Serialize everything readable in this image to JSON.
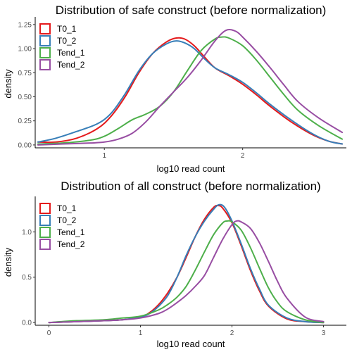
{
  "chart_data": [
    {
      "type": "line",
      "title": "Distribution of safe construct (before normalization)",
      "xlabel": "log10 read count",
      "ylabel": "density",
      "xlim": [
        0.5,
        2.75
      ],
      "ylim": [
        -0.03,
        1.3
      ],
      "xticks": [
        1,
        2
      ],
      "xtick_labels": [
        "1",
        "2"
      ],
      "yticks": [
        0,
        0.25,
        0.5,
        0.75,
        1,
        1.25
      ],
      "ytick_labels": [
        "0.00",
        "0.25",
        "0.50",
        "0.75",
        "1.00",
        "1.25"
      ],
      "grid": false,
      "legend": "top-left",
      "series": [
        {
          "name": "T0_1",
          "color": "#e41a1c",
          "x": [
            0.52,
            0.65,
            0.8,
            0.95,
            1.05,
            1.15,
            1.25,
            1.35,
            1.45,
            1.52,
            1.58,
            1.65,
            1.72,
            1.8,
            1.9,
            2.0,
            2.1,
            2.2,
            2.35,
            2.5,
            2.62,
            2.72
          ],
          "y": [
            0.03,
            0.03,
            0.07,
            0.17,
            0.3,
            0.5,
            0.75,
            0.95,
            1.07,
            1.11,
            1.1,
            1.03,
            0.92,
            0.8,
            0.72,
            0.63,
            0.52,
            0.4,
            0.24,
            0.11,
            0.04,
            0.01
          ]
        },
        {
          "name": "T0_2",
          "color": "#377eb8",
          "x": [
            0.52,
            0.65,
            0.8,
            0.95,
            1.05,
            1.15,
            1.25,
            1.35,
            1.45,
            1.52,
            1.58,
            1.65,
            1.72,
            1.8,
            1.9,
            2.0,
            2.1,
            2.2,
            2.35,
            2.5,
            2.62,
            2.72
          ],
          "y": [
            0.03,
            0.07,
            0.14,
            0.22,
            0.33,
            0.53,
            0.77,
            0.95,
            1.05,
            1.08,
            1.06,
            1.0,
            0.9,
            0.8,
            0.73,
            0.65,
            0.54,
            0.42,
            0.26,
            0.12,
            0.04,
            0.01
          ]
        },
        {
          "name": "Tend_1",
          "color": "#4daf4a",
          "x": [
            0.52,
            0.7,
            0.9,
            1.0,
            1.1,
            1.2,
            1.3,
            1.4,
            1.5,
            1.6,
            1.7,
            1.8,
            1.85,
            1.9,
            2.0,
            2.1,
            2.2,
            2.3,
            2.4,
            2.55,
            2.72
          ],
          "y": [
            0.01,
            0.02,
            0.05,
            0.09,
            0.17,
            0.26,
            0.32,
            0.4,
            0.55,
            0.77,
            0.98,
            1.1,
            1.12,
            1.11,
            1.03,
            0.88,
            0.7,
            0.52,
            0.36,
            0.2,
            0.06
          ]
        },
        {
          "name": "Tend_2",
          "color": "#984ea3",
          "x": [
            0.52,
            0.7,
            0.9,
            1.0,
            1.1,
            1.2,
            1.3,
            1.4,
            1.5,
            1.6,
            1.7,
            1.8,
            1.88,
            1.95,
            2.0,
            2.1,
            2.2,
            2.3,
            2.4,
            2.55,
            2.72
          ],
          "y": [
            0.0,
            0.01,
            0.02,
            0.03,
            0.06,
            0.12,
            0.24,
            0.4,
            0.55,
            0.7,
            0.88,
            1.08,
            1.19,
            1.18,
            1.12,
            0.97,
            0.8,
            0.62,
            0.45,
            0.28,
            0.13
          ]
        }
      ]
    },
    {
      "type": "line",
      "title": "Distribution of all construct (before normalization)",
      "xlabel": "log10 read count",
      "ylabel": "density",
      "xlim": [
        -0.15,
        3.25
      ],
      "ylim": [
        -0.03,
        1.36
      ],
      "xticks": [
        0,
        1,
        2,
        3
      ],
      "xtick_labels": [
        "0",
        "1",
        "2",
        "3"
      ],
      "yticks": [
        0,
        0.5,
        1
      ],
      "ytick_labels": [
        "0.0",
        "0.5",
        "1.0"
      ],
      "grid": false,
      "legend": "top-left",
      "series": [
        {
          "name": "T0_1",
          "color": "#e41a1c",
          "x": [
            0.0,
            0.3,
            0.6,
            0.8,
            1.0,
            1.1,
            1.2,
            1.3,
            1.4,
            1.5,
            1.6,
            1.7,
            1.8,
            1.85,
            1.9,
            2.0,
            2.1,
            2.2,
            2.3,
            2.4,
            2.6,
            2.8,
            3.0
          ],
          "y": [
            0.0,
            0.01,
            0.02,
            0.03,
            0.06,
            0.11,
            0.2,
            0.33,
            0.5,
            0.72,
            0.95,
            1.14,
            1.27,
            1.29,
            1.26,
            1.1,
            0.85,
            0.58,
            0.35,
            0.18,
            0.04,
            0.01,
            0.0
          ]
        },
        {
          "name": "T0_2",
          "color": "#377eb8",
          "x": [
            0.0,
            0.3,
            0.6,
            0.8,
            1.0,
            1.1,
            1.2,
            1.3,
            1.4,
            1.5,
            1.6,
            1.7,
            1.8,
            1.86,
            1.92,
            2.0,
            2.1,
            2.2,
            2.3,
            2.4,
            2.6,
            2.8,
            3.0
          ],
          "y": [
            0.0,
            0.01,
            0.02,
            0.03,
            0.06,
            0.1,
            0.18,
            0.3,
            0.5,
            0.74,
            0.95,
            1.12,
            1.25,
            1.3,
            1.27,
            1.12,
            0.87,
            0.6,
            0.37,
            0.19,
            0.05,
            0.01,
            0.0
          ]
        },
        {
          "name": "Tend_1",
          "color": "#4daf4a",
          "x": [
            0.0,
            0.3,
            0.6,
            0.8,
            1.0,
            1.2,
            1.3,
            1.4,
            1.5,
            1.6,
            1.7,
            1.8,
            1.9,
            1.95,
            2.0,
            2.1,
            2.2,
            2.3,
            2.4,
            2.5,
            2.6,
            2.8,
            3.0
          ],
          "y": [
            0.0,
            0.02,
            0.03,
            0.05,
            0.07,
            0.14,
            0.2,
            0.28,
            0.4,
            0.58,
            0.78,
            0.97,
            1.1,
            1.12,
            1.11,
            1.02,
            0.83,
            0.6,
            0.38,
            0.22,
            0.12,
            0.03,
            0.0
          ]
        },
        {
          "name": "Tend_2",
          "color": "#984ea3",
          "x": [
            0.0,
            0.3,
            0.6,
            0.8,
            1.0,
            1.2,
            1.3,
            1.4,
            1.5,
            1.6,
            1.7,
            1.8,
            1.9,
            2.0,
            2.05,
            2.1,
            2.2,
            2.3,
            2.4,
            2.5,
            2.6,
            2.8,
            3.0
          ],
          "y": [
            0.0,
            0.01,
            0.02,
            0.03,
            0.05,
            0.1,
            0.15,
            0.22,
            0.3,
            0.4,
            0.52,
            0.72,
            0.92,
            1.08,
            1.12,
            1.11,
            1.04,
            0.88,
            0.67,
            0.45,
            0.27,
            0.06,
            0.01
          ]
        }
      ]
    }
  ]
}
